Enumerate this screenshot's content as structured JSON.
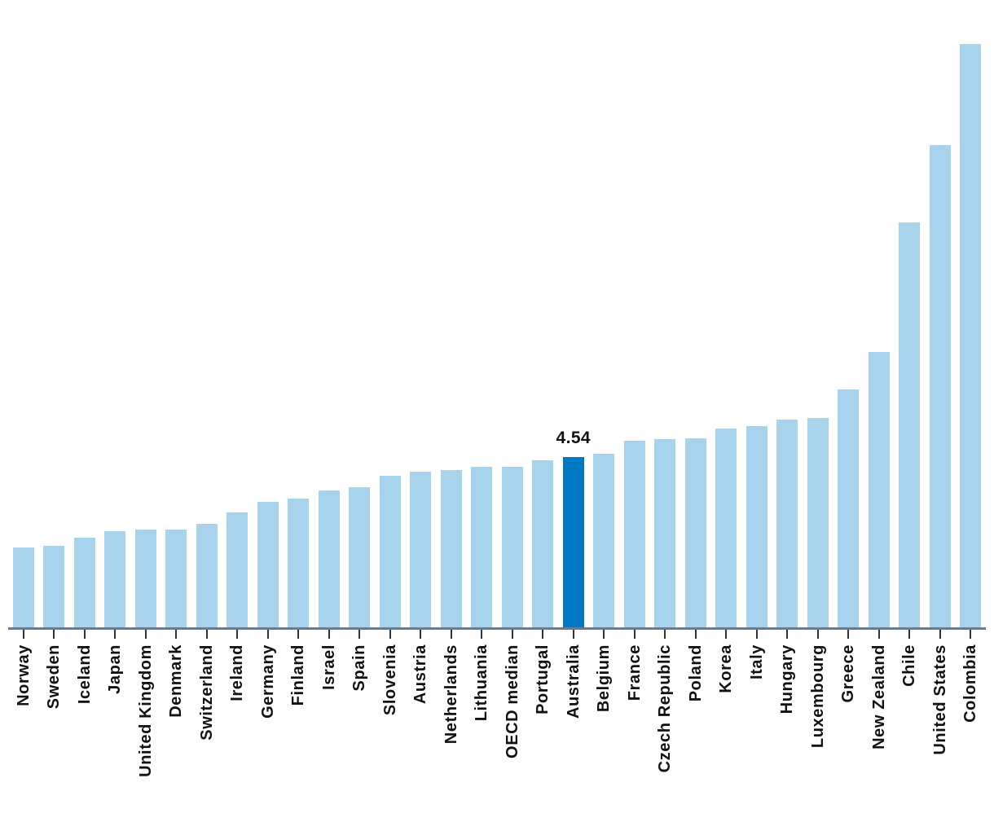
{
  "chart_data": {
    "type": "bar",
    "title": "",
    "xlabel": "",
    "ylabel": "",
    "grid": false,
    "legend": "none",
    "ylim": [
      0,
      16.72
    ],
    "x_tick_rotation_deg": 90,
    "categories": [
      "Norway",
      "Sweden",
      "Iceland",
      "Japan",
      "United Kingdom",
      "Denmark",
      "Switzerland",
      "Ireland",
      "Germany",
      "Finland",
      "Israel",
      "Spain",
      "Slovenia",
      "Austria",
      "Netherlands",
      "Lithuania",
      "OECD median",
      "Portugal",
      "Australia",
      "Belgium",
      "France",
      "Czech Republic",
      "Poland",
      "Korea",
      "Italy",
      "Hungary",
      "Luxembourg",
      "Greece",
      "New Zealand",
      "Chile",
      "United States",
      "Colombia"
    ],
    "values": [
      2.13,
      2.17,
      2.39,
      2.56,
      2.61,
      2.61,
      2.76,
      3.06,
      3.34,
      3.43,
      3.65,
      3.74,
      4.04,
      4.14,
      4.2,
      4.28,
      4.28,
      4.46,
      4.54,
      4.63,
      4.97,
      5.02,
      5.04,
      5.3,
      5.36,
      5.54,
      5.58,
      6.34,
      7.34,
      10.8,
      12.86,
      15.55
    ],
    "highlight_category": "Australia",
    "annotation": {
      "text": "4.54",
      "target": "Australia"
    },
    "colors": {
      "bar": "#A8D3EC",
      "highlight": "#0079C2",
      "axis_line": "#6C7B8B",
      "tick": "#2F3337",
      "text": "#111111"
    }
  }
}
